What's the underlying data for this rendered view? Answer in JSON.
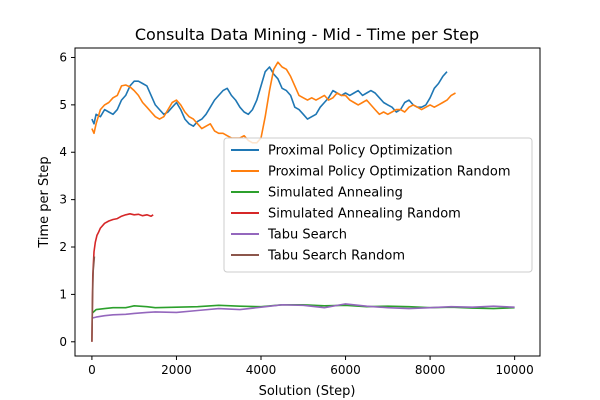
{
  "chart_data": {
    "type": "line",
    "title": "Consulta Data Mining - Mid - Time per Step",
    "xlabel": "Solution (Step)",
    "ylabel": "Time per Step",
    "xlim": [
      -400,
      10600
    ],
    "ylim": [
      -0.3,
      6.2
    ],
    "xticks": [
      0,
      2000,
      4000,
      6000,
      8000,
      10000
    ],
    "xtick_labels": [
      "0",
      "2000",
      "4000",
      "6000",
      "8000",
      "10000"
    ],
    "yticks": [
      0,
      1,
      2,
      3,
      4,
      5,
      6
    ],
    "ytick_labels": [
      "0",
      "1",
      "2",
      "3",
      "4",
      "5",
      "6"
    ],
    "grid": false,
    "legend": "center-right",
    "series": [
      {
        "name": "Proximal Policy Optimization",
        "color": "#1f77b4",
        "x": [
          0,
          50,
          100,
          200,
          300,
          400,
          500,
          600,
          700,
          800,
          900,
          1000,
          1100,
          1200,
          1300,
          1400,
          1500,
          1600,
          1700,
          1800,
          1900,
          2000,
          2100,
          2200,
          2300,
          2400,
          2500,
          2600,
          2700,
          2800,
          2900,
          3000,
          3100,
          3200,
          3300,
          3400,
          3500,
          3600,
          3700,
          3800,
          3900,
          4000,
          4100,
          4200,
          4300,
          4400,
          4500,
          4600,
          4700,
          4800,
          4900,
          5000,
          5100,
          5200,
          5300,
          5400,
          5500,
          5600,
          5700,
          5800,
          5900,
          6000,
          6100,
          6200,
          6300,
          6400,
          6500,
          6600,
          6700,
          6800,
          6900,
          7000,
          7100,
          7200,
          7300,
          7400,
          7500,
          7600,
          7700,
          7800,
          7900,
          8000,
          8100,
          8200,
          8300,
          8400
        ],
        "y": [
          4.7,
          4.6,
          4.8,
          4.75,
          4.9,
          4.85,
          4.8,
          4.9,
          5.1,
          5.2,
          5.4,
          5.5,
          5.5,
          5.45,
          5.4,
          5.2,
          5.0,
          4.9,
          4.8,
          4.85,
          4.95,
          5.05,
          4.9,
          4.7,
          4.6,
          4.55,
          4.65,
          4.7,
          4.8,
          4.95,
          5.1,
          5.2,
          5.3,
          5.35,
          5.2,
          5.1,
          4.95,
          4.85,
          4.8,
          4.9,
          5.1,
          5.4,
          5.7,
          5.8,
          5.65,
          5.55,
          5.35,
          5.3,
          5.2,
          4.95,
          4.9,
          4.8,
          4.7,
          4.75,
          4.8,
          4.95,
          5.05,
          5.15,
          5.3,
          5.25,
          5.2,
          5.25,
          5.2,
          5.25,
          5.3,
          5.2,
          5.25,
          5.3,
          5.25,
          5.15,
          5.05,
          5.0,
          4.95,
          4.85,
          4.9,
          5.05,
          5.1,
          5.0,
          4.95,
          4.95,
          5.0,
          5.15,
          5.35,
          5.45,
          5.6,
          5.7
        ]
      },
      {
        "name": "Proximal Policy Optimization Random",
        "color": "#ff7f0e",
        "x": [
          0,
          50,
          100,
          200,
          300,
          400,
          500,
          600,
          700,
          800,
          900,
          1000,
          1100,
          1200,
          1300,
          1400,
          1500,
          1600,
          1700,
          1800,
          1900,
          2000,
          2100,
          2200,
          2300,
          2400,
          2500,
          2600,
          2700,
          2800,
          2900,
          3000,
          3100,
          3200,
          3300,
          3400,
          3500,
          3600,
          3700,
          3800,
          3900,
          4000,
          4100,
          4200,
          4300,
          4400,
          4500,
          4600,
          4700,
          4800,
          4900,
          5000,
          5100,
          5200,
          5300,
          5400,
          5500,
          5600,
          5700,
          5800,
          5900,
          6000,
          6100,
          6200,
          6300,
          6400,
          6500,
          6600,
          6700,
          6800,
          6900,
          7000,
          7100,
          7200,
          7300,
          7400,
          7500,
          7600,
          7700,
          7800,
          7900,
          8000,
          8100,
          8200,
          8300,
          8400,
          8500,
          8600
        ],
        "y": [
          4.5,
          4.4,
          4.6,
          4.9,
          5.0,
          5.05,
          5.15,
          5.2,
          5.4,
          5.42,
          5.38,
          5.3,
          5.2,
          5.05,
          4.95,
          4.85,
          4.75,
          4.7,
          4.75,
          4.9,
          5.05,
          5.1,
          5.0,
          4.85,
          4.75,
          4.7,
          4.6,
          4.5,
          4.55,
          4.6,
          4.45,
          4.4,
          4.4,
          4.35,
          4.3,
          4.3,
          4.3,
          4.35,
          4.25,
          4.2,
          4.2,
          4.3,
          4.75,
          5.3,
          5.75,
          5.9,
          5.8,
          5.75,
          5.6,
          5.4,
          5.2,
          5.15,
          5.1,
          5.15,
          5.1,
          5.15,
          5.2,
          5.1,
          5.15,
          5.25,
          5.2,
          5.2,
          5.1,
          5.05,
          5.0,
          5.05,
          5.1,
          5.0,
          4.9,
          4.8,
          4.85,
          4.8,
          4.85,
          4.9,
          4.9,
          4.85,
          4.95,
          5.0,
          4.95,
          4.9,
          4.95,
          5.0,
          4.95,
          5.0,
          5.05,
          5.1,
          5.2,
          5.25
        ]
      },
      {
        "name": "Simulated Annealing",
        "color": "#2ca02c",
        "x": [
          0,
          100,
          300,
          500,
          800,
          1000,
          1300,
          1500,
          2000,
          2500,
          3000,
          3500,
          4000,
          4500,
          5000,
          5500,
          6000,
          6500,
          7000,
          7500,
          8000,
          8500,
          9000,
          9500,
          10000
        ],
        "y": [
          0.6,
          0.68,
          0.7,
          0.72,
          0.72,
          0.76,
          0.74,
          0.72,
          0.73,
          0.74,
          0.77,
          0.75,
          0.74,
          0.78,
          0.78,
          0.76,
          0.77,
          0.74,
          0.75,
          0.74,
          0.72,
          0.73,
          0.71,
          0.7,
          0.72
        ]
      },
      {
        "name": "Simulated Annealing Random",
        "color": "#d62728",
        "x": [
          0,
          20,
          50,
          80,
          120,
          150,
          200,
          300,
          400,
          500,
          600,
          700,
          800,
          900,
          1000,
          1100,
          1200,
          1300,
          1400,
          1450
        ],
        "y": [
          0.0,
          1.4,
          1.9,
          2.1,
          2.25,
          2.3,
          2.4,
          2.5,
          2.55,
          2.58,
          2.6,
          2.65,
          2.68,
          2.7,
          2.68,
          2.69,
          2.66,
          2.68,
          2.65,
          2.68
        ]
      },
      {
        "name": "Tabu Search",
        "color": "#9467bd",
        "x": [
          0,
          100,
          300,
          500,
          800,
          1000,
          1300,
          1500,
          2000,
          2500,
          3000,
          3500,
          4000,
          4500,
          5000,
          5500,
          6000,
          6500,
          7000,
          7500,
          8000,
          8500,
          9000,
          9500,
          10000
        ],
        "y": [
          0.5,
          0.52,
          0.55,
          0.57,
          0.58,
          0.6,
          0.62,
          0.63,
          0.62,
          0.66,
          0.7,
          0.68,
          0.73,
          0.78,
          0.77,
          0.72,
          0.8,
          0.75,
          0.72,
          0.7,
          0.72,
          0.74,
          0.73,
          0.75,
          0.73
        ]
      },
      {
        "name": "Tabu Search Random",
        "color": "#8c564b",
        "x": [
          0,
          15,
          30,
          60
        ],
        "y": [
          0.0,
          0.9,
          1.5,
          1.8
        ]
      }
    ]
  }
}
